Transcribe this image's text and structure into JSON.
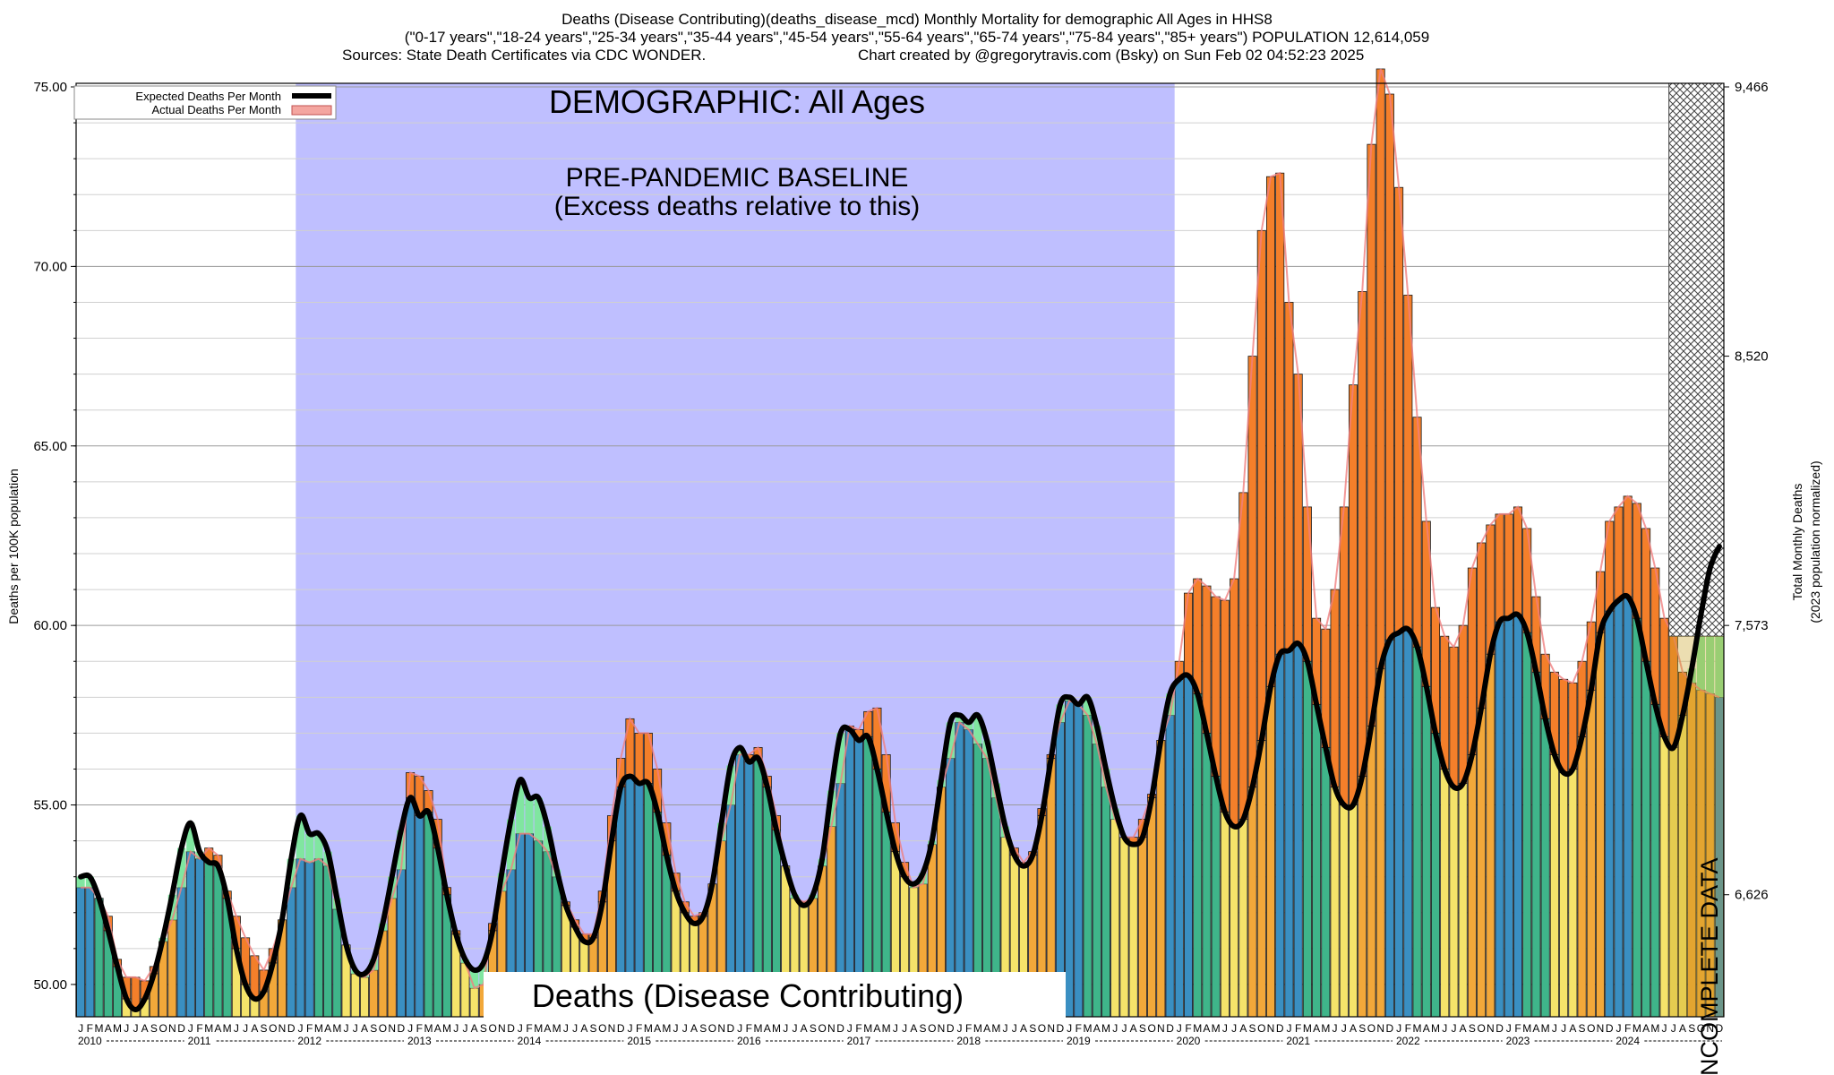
{
  "chart_data": {
    "type": "bar",
    "title": "Deaths (Disease Contributing)(deaths_disease_mcd) Monthly Mortality for demographic All Ages in HHS8",
    "subtitle": "(\"0-17 years\",\"18-24 years\",\"25-34 years\",\"35-44 years\",\"45-54 years\",\"55-64 years\",\"65-74 years\",\"75-84 years\",\"85+ years\") POPULATION 12,614,059",
    "source_line": "Sources: State Death Certificates via CDC WONDER.",
    "credit_line": "Chart created by @gregorytravis.com (Bsky) on Sun Feb 02 04:52:23 2025",
    "ylabel": "Deaths per 100K population",
    "y2label_line1": "Total Monthly Deaths",
    "y2label_line2": "(2023 population normalized)",
    "ylim": [
      49.1,
      75.1
    ],
    "y_ticks": [
      "50.00",
      "55.00",
      "60.00",
      "65.00",
      "70.00",
      "75.00"
    ],
    "y2_ticks": [
      "6,626",
      "7,573",
      "8,520",
      "9,466"
    ],
    "y2_tick_values": [
      52.5,
      60.0,
      67.5,
      75.0
    ],
    "month_letters": [
      "J",
      "F",
      "M",
      "A",
      "M",
      "J",
      "J",
      "A",
      "S",
      "O",
      "N",
      "D"
    ],
    "years": [
      "2010",
      "2011",
      "2012",
      "2013",
      "2014",
      "2015",
      "2016",
      "2017",
      "2018",
      "2019",
      "2020",
      "2021",
      "2022",
      "2023",
      "2024"
    ],
    "legend": [
      {
        "label": "Expected Deaths Per Month",
        "color": "#000000"
      },
      {
        "label": "Actual Deaths Per Month",
        "color": "#f4a6a0"
      }
    ],
    "baseline_region": {
      "start": "2012-01",
      "end": "2019-12",
      "color": "#bfbfff"
    },
    "incomplete_region": {
      "start": "2024-07",
      "end": "2024-12"
    },
    "banner_demographic": "DEMOGRAPHIC: All Ages",
    "banner_baseline_1": "PRE-PANDEMIC BASELINE",
    "banner_baseline_2": "(Excess deaths relative to this)",
    "banner_metric": "Deaths (Disease Contributing)",
    "banner_incomplete": "INCOMPLETE DATA",
    "season_colors": {
      "winter": "#3a8fc2",
      "spring": "#3fb58a",
      "summer": "#f5e36a",
      "autumn": "#f2a83a"
    },
    "excess_colors": {
      "above": "#f47f2a",
      "below": "#80e6a0"
    },
    "actual": [
      52.7,
      52.7,
      52.4,
      51.9,
      50.7,
      50.2,
      50.2,
      50.1,
      50.5,
      51.2,
      51.8,
      52.7,
      53.7,
      53.5,
      53.8,
      53.6,
      52.6,
      51.9,
      51.3,
      50.8,
      50.4,
      51.0,
      51.8,
      52.7,
      53.5,
      53.4,
      53.5,
      53.3,
      52.1,
      51.1,
      50.3,
      50.2,
      50.4,
      51.5,
      52.4,
      53.2,
      55.9,
      55.8,
      55.4,
      54.6,
      52.7,
      51.5,
      50.6,
      49.9,
      50.0,
      51.7,
      52.6,
      53.2,
      54.2,
      54.2,
      54.0,
      53.7,
      53.0,
      52.3,
      51.8,
      51.4,
      51.4,
      52.6,
      54.7,
      56.3,
      57.4,
      57.0,
      57.0,
      56.0,
      54.5,
      53.1,
      52.3,
      51.9,
      52.0,
      52.8,
      54.0,
      55.0,
      56.4,
      56.4,
      56.6,
      55.8,
      54.7,
      53.3,
      52.4,
      52.3,
      52.4,
      53.3,
      54.4,
      55.6,
      57.2,
      57.1,
      57.6,
      57.7,
      56.4,
      54.5,
      53.4,
      52.7,
      52.8,
      53.9,
      55.5,
      56.3,
      57.3,
      57.1,
      56.7,
      56.3,
      55.2,
      54.1,
      53.8,
      53.4,
      53.7,
      54.9,
      56.4,
      57.3,
      57.9,
      57.8,
      57.5,
      56.7,
      55.5,
      54.6,
      54.1,
      54.1,
      54.6,
      55.3,
      56.8,
      57.5,
      59.0,
      60.9,
      61.3,
      61.1,
      60.8,
      60.7,
      61.3,
      63.7,
      67.5,
      71.0,
      72.5,
      72.6,
      69.0,
      67.0,
      63.3,
      60.2,
      59.9,
      61.0,
      63.3,
      66.7,
      69.3,
      73.4,
      75.5,
      74.8,
      72.2,
      69.2,
      65.8,
      62.9,
      60.5,
      59.7,
      59.4,
      60.0,
      61.6,
      62.3,
      62.8,
      63.1,
      63.1,
      63.3,
      62.7,
      60.8,
      59.2,
      58.7,
      58.5,
      58.4,
      59.0,
      60.1,
      61.5,
      62.9,
      63.3,
      63.6,
      63.4,
      62.7,
      61.6,
      60.2,
      59.7,
      58.7,
      58.4,
      58.2,
      58.1,
      58.0
    ],
    "expected": [
      53.0,
      53.0,
      52.4,
      51.5,
      50.5,
      49.6,
      49.3,
      49.6,
      50.3,
      51.3,
      52.5,
      53.8,
      54.5,
      53.7,
      53.4,
      53.3,
      52.4,
      51.0,
      50.0,
      49.6,
      49.8,
      50.6,
      51.8,
      53.5,
      54.7,
      54.2,
      54.2,
      53.7,
      52.4,
      51.1,
      50.4,
      50.3,
      50.7,
      51.7,
      53.0,
      54.3,
      55.2,
      54.7,
      54.8,
      53.8,
      52.5,
      51.4,
      50.7,
      50.4,
      50.6,
      51.5,
      53.1,
      54.6,
      55.7,
      55.2,
      55.2,
      54.4,
      53.2,
      52.2,
      51.6,
      51.2,
      51.3,
      52.3,
      54.0,
      55.5,
      55.8,
      55.6,
      55.6,
      54.8,
      53.6,
      52.6,
      52.0,
      51.7,
      51.9,
      52.8,
      54.5,
      56.1,
      56.6,
      56.2,
      56.3,
      55.5,
      54.3,
      53.3,
      52.5,
      52.2,
      52.5,
      53.5,
      55.4,
      57.0,
      57.1,
      56.8,
      56.9,
      56.0,
      54.8,
      53.7,
      53.0,
      52.8,
      53.1,
      54.0,
      55.7,
      57.3,
      57.5,
      57.3,
      57.5,
      56.8,
      55.6,
      54.4,
      53.6,
      53.3,
      53.6,
      54.7,
      56.3,
      57.8,
      58.0,
      57.8,
      58.0,
      57.2,
      56.0,
      54.9,
      54.1,
      53.9,
      54.1,
      55.2,
      56.8,
      58.1,
      58.5,
      58.6,
      58.1,
      57.0,
      55.8,
      54.8,
      54.4,
      54.6,
      55.5,
      56.8,
      58.3,
      59.2,
      59.3,
      59.5,
      59.0,
      57.8,
      56.6,
      55.5,
      55.0,
      55.0,
      55.8,
      57.2,
      58.8,
      59.6,
      59.8,
      59.9,
      59.4,
      58.3,
      57.0,
      56.0,
      55.5,
      55.6,
      56.4,
      57.7,
      59.2,
      60.1,
      60.2,
      60.3,
      59.8,
      58.7,
      57.4,
      56.4,
      55.9,
      56.0,
      56.9,
      58.2,
      59.8,
      60.4,
      60.7,
      60.8,
      60.2,
      59.0,
      57.8,
      56.9,
      56.6,
      57.5,
      58.8,
      60.3,
      61.6,
      62.2
    ],
    "grid": "horizontal"
  }
}
